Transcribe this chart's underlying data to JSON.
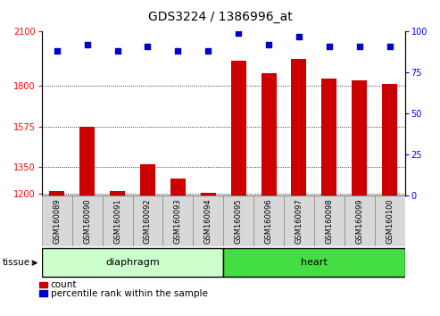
{
  "title": "GDS3224 / 1386996_at",
  "samples": [
    "GSM160089",
    "GSM160090",
    "GSM160091",
    "GSM160092",
    "GSM160093",
    "GSM160094",
    "GSM160095",
    "GSM160096",
    "GSM160097",
    "GSM160098",
    "GSM160099",
    "GSM160100"
  ],
  "counts": [
    1218,
    1575,
    1215,
    1365,
    1285,
    1205,
    1940,
    1870,
    1950,
    1840,
    1830,
    1810
  ],
  "percentiles": [
    88,
    92,
    88,
    91,
    88,
    88,
    99,
    92,
    97,
    91,
    91,
    91
  ],
  "tissue_groups": [
    {
      "label": "diaphragm",
      "start": 0,
      "end": 6,
      "color": "#ccffcc"
    },
    {
      "label": "heart",
      "start": 6,
      "end": 12,
      "color": "#44dd44"
    }
  ],
  "ylim_left": [
    1190,
    2100
  ],
  "ylim_right": [
    0,
    100
  ],
  "yticks_left": [
    1200,
    1350,
    1575,
    1800,
    2100
  ],
  "yticks_right": [
    0,
    25,
    50,
    75,
    100
  ],
  "bar_color": "#CC0000",
  "dot_color": "#0000CC",
  "bar_width": 0.5,
  "bar_baseline": 1190,
  "title_fontsize": 10,
  "tick_fontsize": 7,
  "label_fontsize": 6,
  "tissue_label_fontsize": 8
}
